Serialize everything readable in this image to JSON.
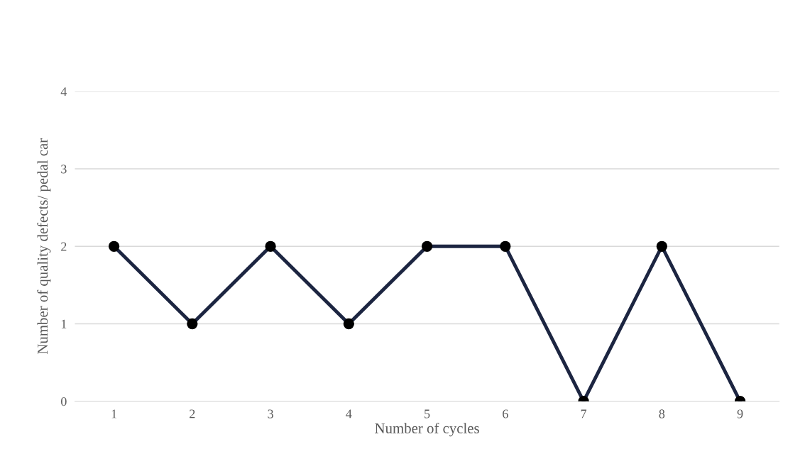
{
  "chart_data": {
    "type": "line",
    "xlabel": "Number of cycles",
    "ylabel": "Number of quality defects/ pedal car",
    "categories": [
      "1",
      "2",
      "3",
      "4",
      "5",
      "6",
      "7",
      "8",
      "9"
    ],
    "series": [
      {
        "color": "#1c2541",
        "values": [
          2,
          1,
          2,
          1,
          2,
          2,
          0,
          2,
          0
        ]
      }
    ],
    "ylim": [
      0,
      4
    ],
    "yticks": [
      0,
      1,
      2,
      3,
      4
    ],
    "grid": "y",
    "marker": "circle",
    "line_style": "solid"
  }
}
